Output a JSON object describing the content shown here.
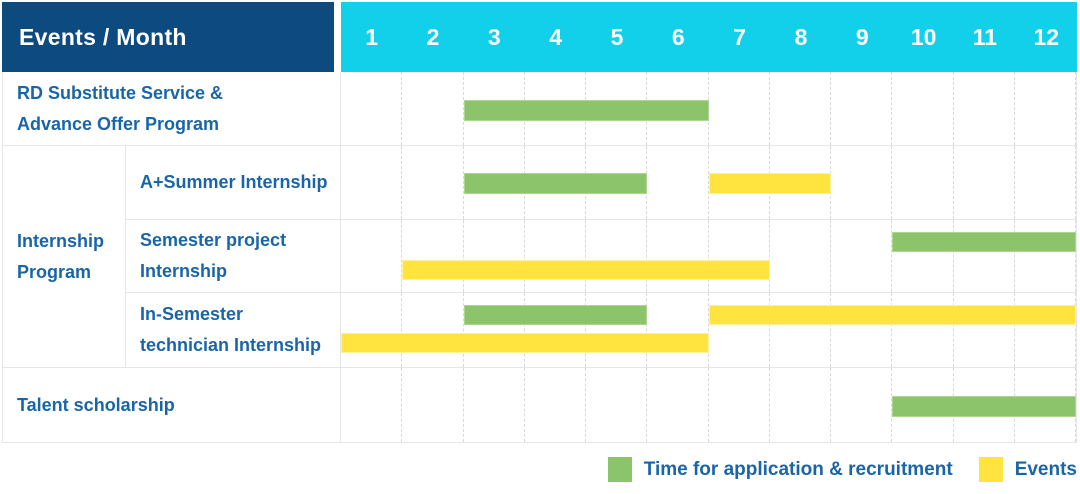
{
  "colors": {
    "corner_header_bg": "#0d4a80",
    "month_header_bg": "#12d0e9",
    "label_text": "#1a65a8",
    "grid_line": "#d9d9d9",
    "application_green": "#8bc46a",
    "event_yellow": "#ffe33e"
  },
  "chart_data": {
    "type": "table",
    "subtype": "gantt",
    "title": "Events / Month",
    "x_axis": {
      "label": "Month",
      "range": [
        1,
        12
      ],
      "grid": true
    },
    "x_ticks": [
      "1",
      "2",
      "3",
      "4",
      "5",
      "6",
      "7",
      "8",
      "9",
      "10",
      "11",
      "12"
    ],
    "legend_position": "bottom-right",
    "series_colors": {
      "application": "#8bc46a",
      "event": "#ffe33e"
    },
    "rows": [
      {
        "group": "",
        "label": "RD Substitute Service & Advance Offer Program",
        "bars": [
          {
            "kind": "application",
            "start_month": 3,
            "end_month": 6,
            "line": "center"
          }
        ]
      },
      {
        "group": "Internship Program",
        "label": "A+Summer Internship",
        "bars": [
          {
            "kind": "application",
            "start_month": 3,
            "end_month": 5,
            "line": "center"
          },
          {
            "kind": "event",
            "start_month": 7,
            "end_month": 8,
            "line": "center"
          }
        ]
      },
      {
        "group": "Internship Program",
        "label": "Semester project Internship",
        "bars": [
          {
            "kind": "application",
            "start_month": 10,
            "end_month": 12,
            "line": "top"
          },
          {
            "kind": "event",
            "start_month": 2,
            "end_month": 7,
            "line": "bottom"
          }
        ]
      },
      {
        "group": "Internship Program",
        "label": "In-Semester technician Internship",
        "bars": [
          {
            "kind": "application",
            "start_month": 3,
            "end_month": 5,
            "line": "top"
          },
          {
            "kind": "event",
            "start_month": 7,
            "end_month": 12,
            "line": "top"
          },
          {
            "kind": "event",
            "start_month": 1,
            "end_month": 6,
            "line": "bottom"
          }
        ]
      },
      {
        "group": "",
        "label": "Talent scholarship",
        "bars": [
          {
            "kind": "application",
            "start_month": 10,
            "end_month": 12,
            "line": "center"
          }
        ]
      }
    ],
    "legend": [
      {
        "name": "application",
        "label": "Time for application & recruitment",
        "color": "#8bc46a"
      },
      {
        "name": "events",
        "label": "Events",
        "color": "#ffe33e"
      }
    ]
  }
}
